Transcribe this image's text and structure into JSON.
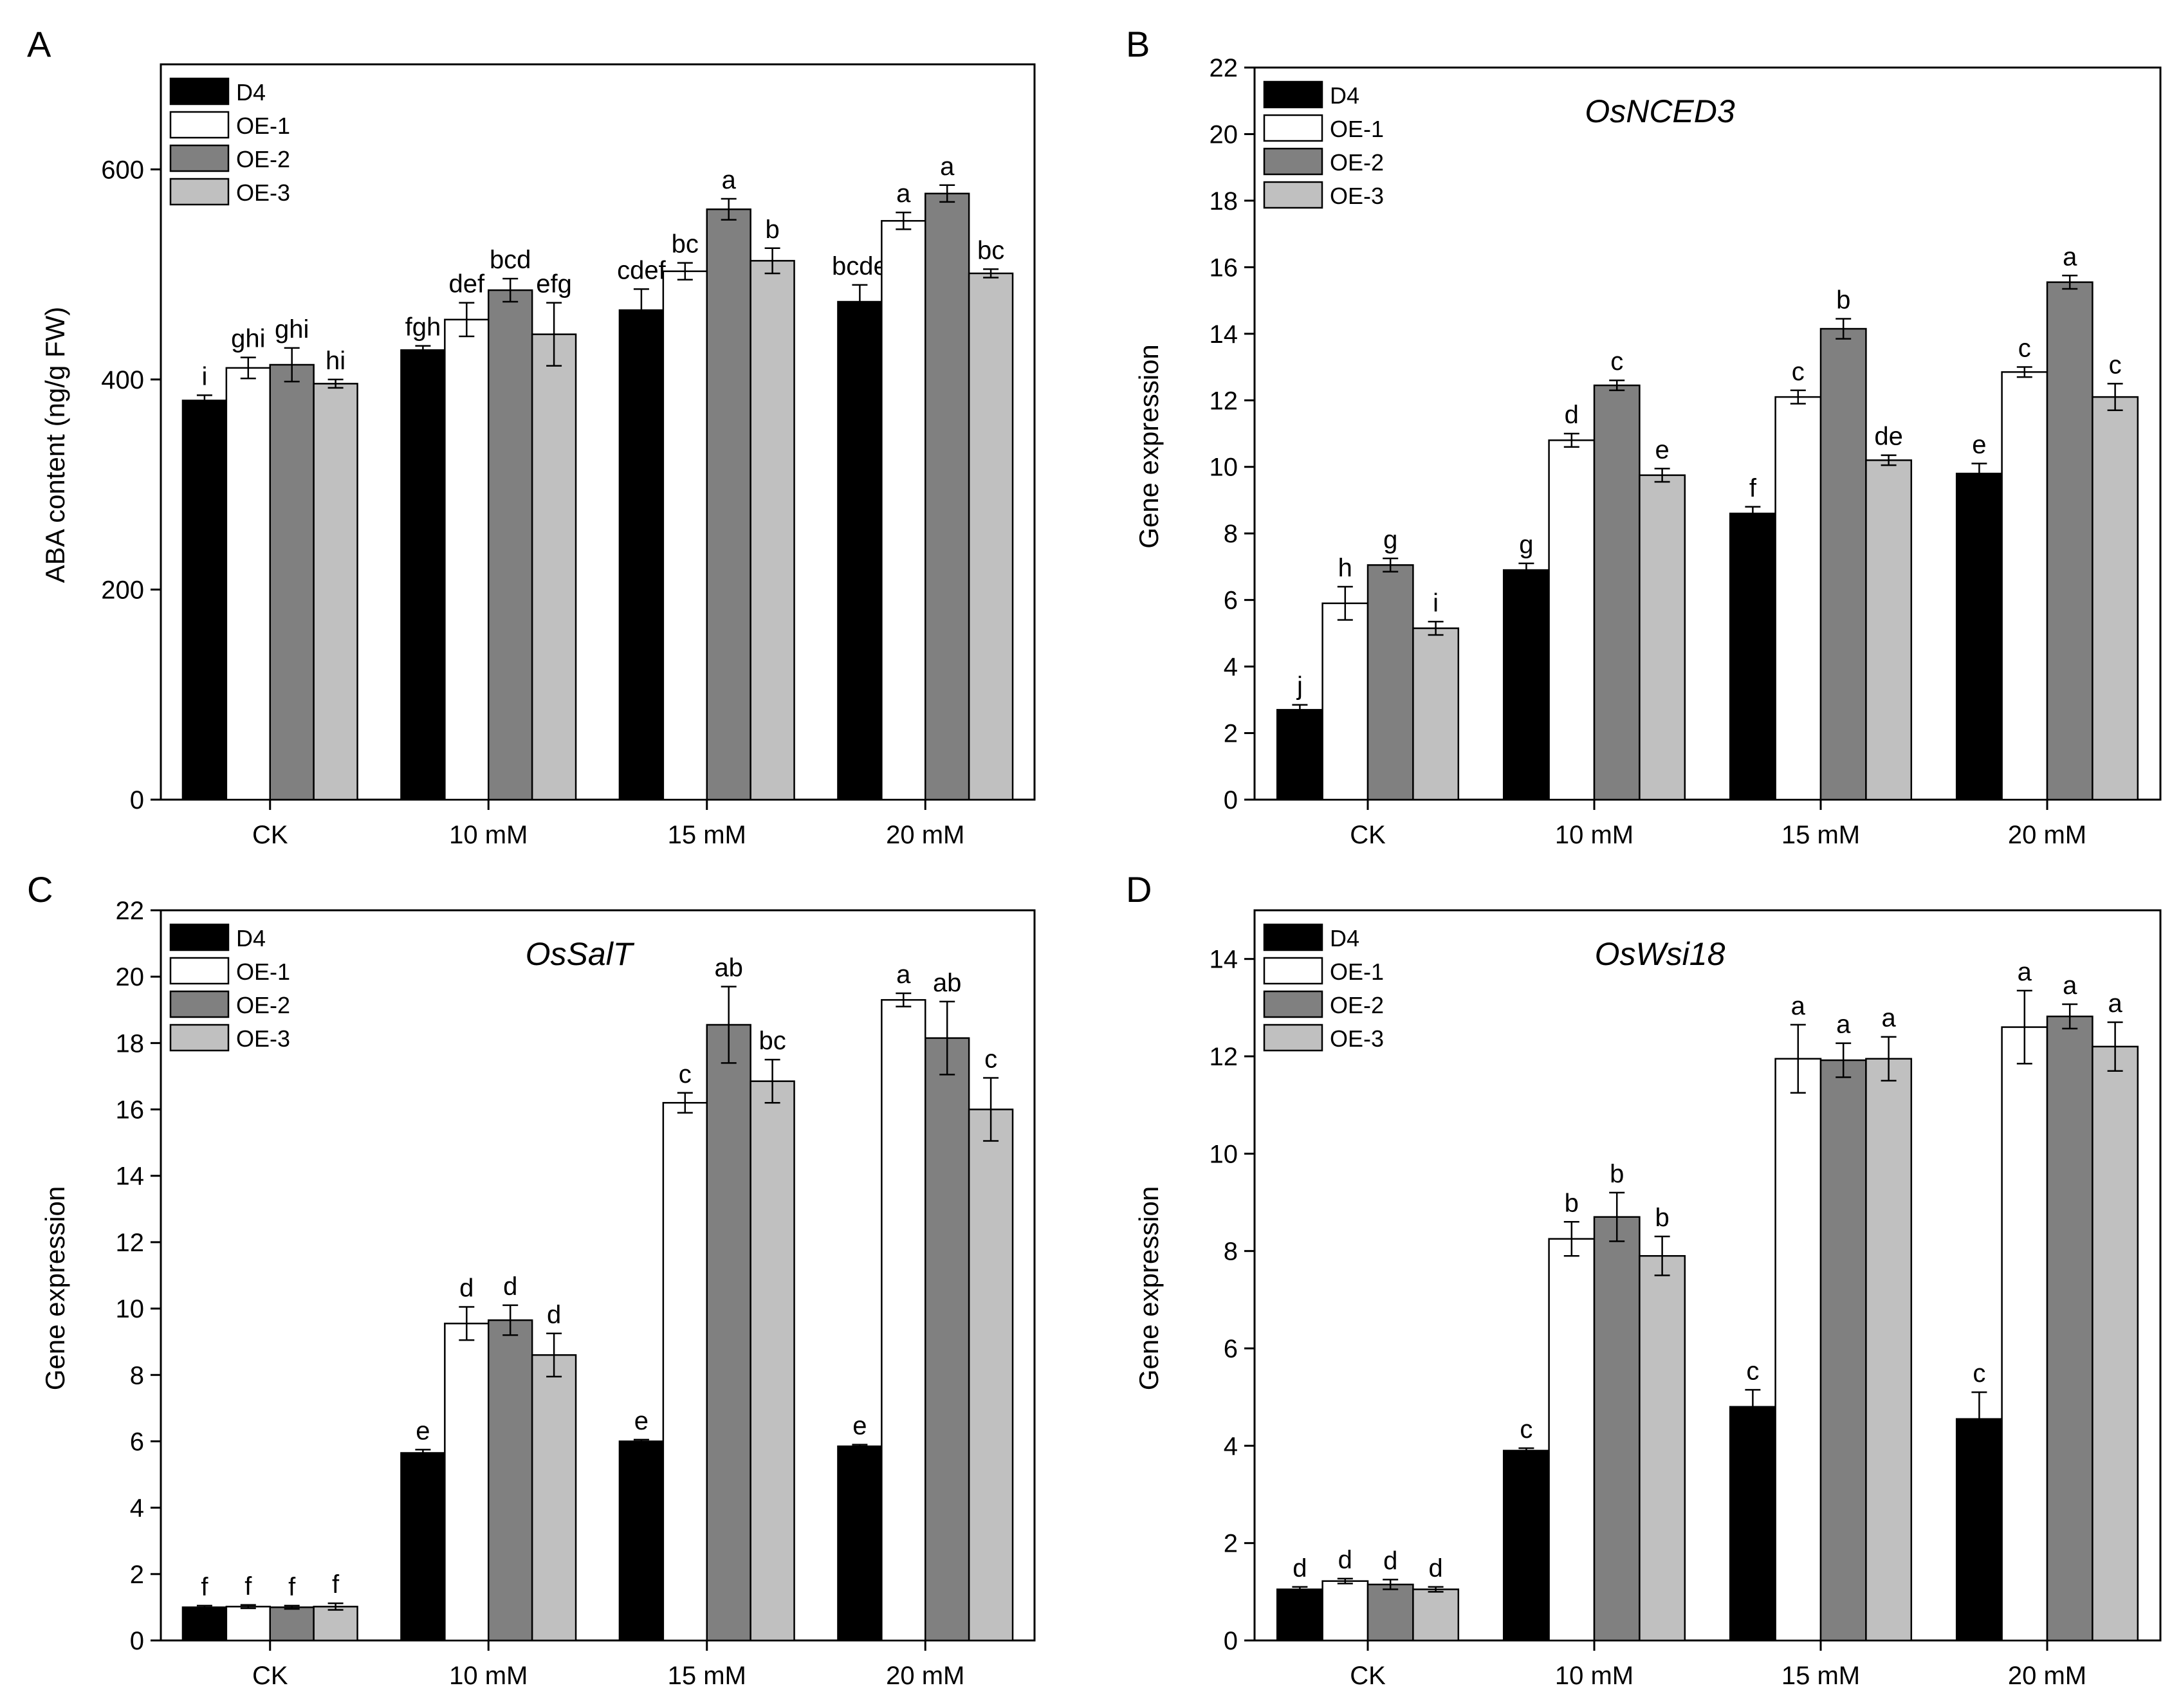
{
  "figure": {
    "group_colors": [
      "#000000",
      "#ffffff",
      "#808080",
      "#c0c0c0"
    ],
    "panels": [
      {
        "letter": "A",
        "chart_data": {
          "type": "bar",
          "title": "",
          "xlabel": "",
          "ylabel": "ABA content (ng/g FW)",
          "ylim": [
            0,
            700
          ],
          "yticks": [
            0,
            200,
            400,
            600
          ],
          "categories": [
            "CK",
            "10 mM",
            "15 mM",
            "20 mM"
          ],
          "legend_position": "top-left",
          "series": [
            {
              "name": "D4",
              "values": [
                380,
                428,
                466,
                474
              ],
              "errors": [
                5,
                4,
                20,
                16
              ],
              "labels": [
                "i",
                "fgh",
                "cdef",
                "bcde"
              ]
            },
            {
              "name": "OE-1",
              "values": [
                411,
                457,
                503,
                551
              ],
              "errors": [
                10,
                16,
                8,
                8
              ],
              "labels": [
                "ghi",
                "def",
                "bc",
                "a"
              ]
            },
            {
              "name": "OE-2",
              "values": [
                414,
                485,
                562,
                577
              ],
              "errors": [
                16,
                11,
                10,
                8
              ],
              "labels": [
                "ghi",
                "bcd",
                "a",
                "a"
              ]
            },
            {
              "name": "OE-3",
              "values": [
                396,
                443,
                513,
                501
              ],
              "errors": [
                4,
                30,
                12,
                4
              ],
              "labels": [
                "hi",
                "efg",
                "b",
                "bc"
              ]
            }
          ]
        }
      },
      {
        "letter": "B",
        "chart_data": {
          "type": "bar",
          "title": "OsNCED3",
          "xlabel": "",
          "ylabel": "Gene expression",
          "ylim": [
            0,
            22
          ],
          "yticks": [
            0,
            2,
            4,
            6,
            8,
            10,
            12,
            14,
            16,
            18,
            20,
            22
          ],
          "categories": [
            "CK",
            "10 mM",
            "15 mM",
            "20 mM"
          ],
          "legend_position": "top-left",
          "series": [
            {
              "name": "D4",
              "values": [
                2.7,
                6.9,
                8.6,
                9.8
              ],
              "errors": [
                0.15,
                0.2,
                0.2,
                0.3
              ],
              "labels": [
                "j",
                "g",
                "f",
                "e"
              ]
            },
            {
              "name": "OE-1",
              "values": [
                5.9,
                10.8,
                12.1,
                12.85
              ],
              "errors": [
                0.5,
                0.2,
                0.2,
                0.15
              ],
              "labels": [
                "h",
                "d",
                "c",
                "c"
              ]
            },
            {
              "name": "OE-2",
              "values": [
                7.05,
                12.45,
                14.15,
                15.55
              ],
              "errors": [
                0.2,
                0.15,
                0.3,
                0.2
              ],
              "labels": [
                "g",
                "c",
                "b",
                "a"
              ]
            },
            {
              "name": "OE-3",
              "values": [
                5.15,
                9.75,
                10.2,
                12.1
              ],
              "errors": [
                0.2,
                0.2,
                0.15,
                0.4
              ],
              "labels": [
                "i",
                "e",
                "de",
                "c"
              ]
            }
          ]
        }
      },
      {
        "letter": "C",
        "chart_data": {
          "type": "bar",
          "title": "OsSalT",
          "xlabel": "",
          "ylabel": "Gene expression",
          "ylim": [
            0,
            22
          ],
          "yticks": [
            0,
            2,
            4,
            6,
            8,
            10,
            12,
            14,
            16,
            18,
            20,
            22
          ],
          "categories": [
            "CK",
            "10 mM",
            "15 mM",
            "20 mM"
          ],
          "legend_position": "top-left",
          "series": [
            {
              "name": "D4",
              "values": [
                1.0,
                5.65,
                6.0,
                5.85
              ],
              "errors": [
                0.05,
                0.1,
                0.05,
                0.05
              ],
              "labels": [
                "f",
                "e",
                "e",
                "e"
              ]
            },
            {
              "name": "OE-1",
              "values": [
                1.02,
                9.55,
                16.2,
                19.3
              ],
              "errors": [
                0.05,
                0.5,
                0.3,
                0.2
              ],
              "labels": [
                "f",
                "d",
                "c",
                "a"
              ]
            },
            {
              "name": "OE-2",
              "values": [
                1.0,
                9.65,
                18.55,
                18.15
              ],
              "errors": [
                0.05,
                0.45,
                1.15,
                1.1
              ],
              "labels": [
                "f",
                "d",
                "ab",
                "ab"
              ]
            },
            {
              "name": "OE-3",
              "values": [
                1.02,
                8.6,
                16.85,
                16.0
              ],
              "errors": [
                0.1,
                0.65,
                0.65,
                0.95
              ],
              "labels": [
                "f",
                "d",
                "bc",
                "c"
              ]
            }
          ]
        }
      },
      {
        "letter": "D",
        "chart_data": {
          "type": "bar",
          "title": "OsWsi18",
          "xlabel": "",
          "ylabel": "Gene expression",
          "ylim": [
            0,
            15
          ],
          "yticks": [
            0,
            2,
            4,
            6,
            8,
            10,
            12,
            14
          ],
          "categories": [
            "CK",
            "10 mM",
            "15 mM",
            "20 mM"
          ],
          "legend_position": "top-left",
          "series": [
            {
              "name": "D4",
              "values": [
                1.05,
                3.9,
                4.8,
                4.55
              ],
              "errors": [
                0.05,
                0.05,
                0.35,
                0.55
              ],
              "labels": [
                "d",
                "c",
                "c",
                "c"
              ]
            },
            {
              "name": "OE-1",
              "values": [
                1.22,
                8.25,
                11.95,
                12.6
              ],
              "errors": [
                0.05,
                0.35,
                0.7,
                0.75
              ],
              "labels": [
                "d",
                "b",
                "a",
                "a"
              ]
            },
            {
              "name": "OE-2",
              "values": [
                1.15,
                8.7,
                11.92,
                12.82
              ],
              "errors": [
                0.1,
                0.5,
                0.35,
                0.25
              ],
              "labels": [
                "d",
                "b",
                "a",
                "a"
              ]
            },
            {
              "name": "OE-3",
              "values": [
                1.05,
                7.9,
                11.95,
                12.2
              ],
              "errors": [
                0.05,
                0.4,
                0.45,
                0.5
              ],
              "labels": [
                "d",
                "b",
                "a",
                "a"
              ]
            }
          ]
        }
      }
    ]
  }
}
